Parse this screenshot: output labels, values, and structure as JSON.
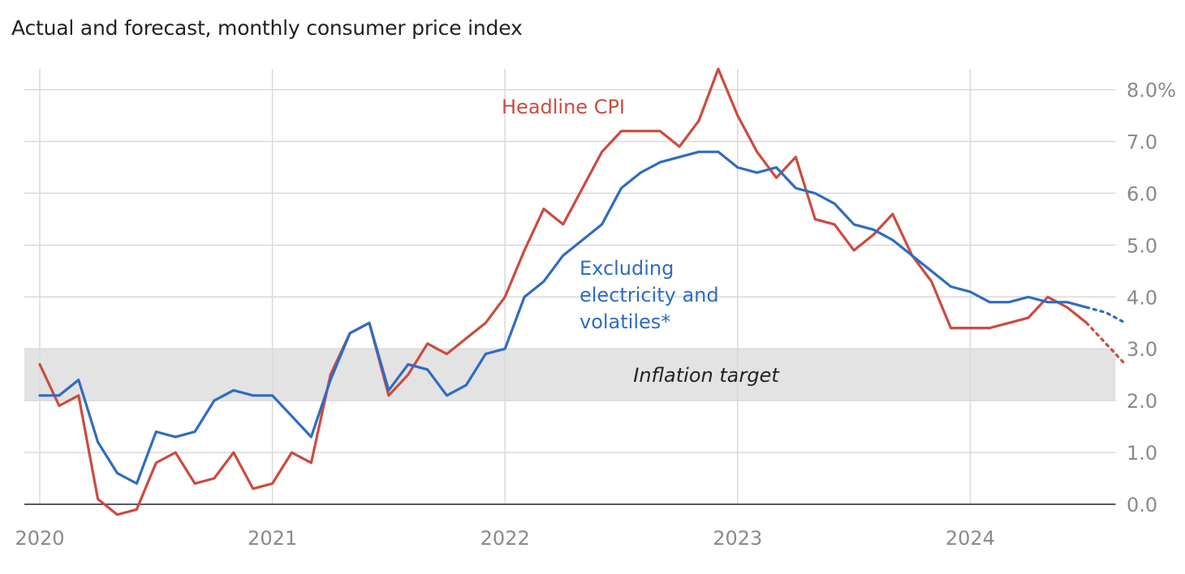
{
  "title": "Actual and forecast, monthly consumer price index",
  "colors": {
    "headline": "#cc4b3f",
    "core": "#2f6cc2",
    "grid": "#d9d9d9",
    "band": "#e3e3e3",
    "axis": "#222222",
    "tick": "#8a8a8a"
  },
  "chart_data": {
    "type": "line",
    "title": "Actual and forecast, monthly consumer price index",
    "xlabel": "",
    "ylabel": "",
    "x_start": "2020-01",
    "xlim": [
      0,
      55.5
    ],
    "ylim": [
      0,
      8.4
    ],
    "x_ticks": [
      {
        "month": 0,
        "label": "2020"
      },
      {
        "month": 12,
        "label": "2021"
      },
      {
        "month": 24,
        "label": "2022"
      },
      {
        "month": 36,
        "label": "2023"
      },
      {
        "month": 48,
        "label": "2024"
      }
    ],
    "y_ticks": [
      {
        "value": 0,
        "label": "0.0"
      },
      {
        "value": 1,
        "label": "1.0"
      },
      {
        "value": 2,
        "label": "2.0"
      },
      {
        "value": 3,
        "label": "3.0"
      },
      {
        "value": 4,
        "label": "4.0"
      },
      {
        "value": 5,
        "label": "5.0"
      },
      {
        "value": 6,
        "label": "6.0"
      },
      {
        "value": 7,
        "label": "7.0"
      },
      {
        "value": 8,
        "label": "8.0%"
      }
    ],
    "band": {
      "from": 2,
      "to": 3,
      "label": "Inflation target"
    },
    "series": [
      {
        "name": "Headline CPI",
        "label": "Headline CPI",
        "color": "#cc4b3f",
        "actual": [
          2.7,
          1.9,
          2.1,
          0.1,
          -0.2,
          -0.1,
          0.8,
          1.0,
          0.4,
          0.5,
          1.0,
          0.3,
          0.4,
          1.0,
          0.8,
          2.5,
          3.3,
          3.5,
          2.1,
          2.5,
          3.1,
          2.9,
          3.2,
          3.5,
          4.0,
          4.9,
          5.7,
          5.4,
          6.1,
          6.8,
          7.2,
          7.2,
          7.2,
          6.9,
          7.4,
          8.4,
          7.5,
          6.8,
          6.3,
          6.7,
          5.5,
          5.4,
          4.9,
          5.2,
          5.6,
          4.8,
          4.3,
          3.4,
          3.4,
          3.4,
          3.5,
          3.6,
          4.0,
          3.8,
          3.5
        ],
        "forecast": [
          3.5,
          3.1,
          2.7
        ]
      },
      {
        "name": "Excluding electricity and volatiles*",
        "label": "Excluding electricity and volatiles*",
        "label_lines": [
          "Excluding",
          "electricity and",
          "volatiles*"
        ],
        "color": "#2f6cc2",
        "actual": [
          2.1,
          2.1,
          2.4,
          1.2,
          0.6,
          0.4,
          1.4,
          1.3,
          1.4,
          2.0,
          2.2,
          2.1,
          2.1,
          1.7,
          1.3,
          2.4,
          3.3,
          3.5,
          2.2,
          2.7,
          2.6,
          2.1,
          2.3,
          2.9,
          3.0,
          4.0,
          4.3,
          4.8,
          5.1,
          5.4,
          6.1,
          6.4,
          6.6,
          6.7,
          6.8,
          6.8,
          6.5,
          6.4,
          6.5,
          6.1,
          6.0,
          5.8,
          5.4,
          5.3,
          5.1,
          4.8,
          4.5,
          4.2,
          4.1,
          3.9,
          3.9,
          4.0,
          3.9,
          3.9,
          3.8
        ],
        "forecast": [
          3.8,
          3.7,
          3.5
        ]
      }
    ]
  }
}
